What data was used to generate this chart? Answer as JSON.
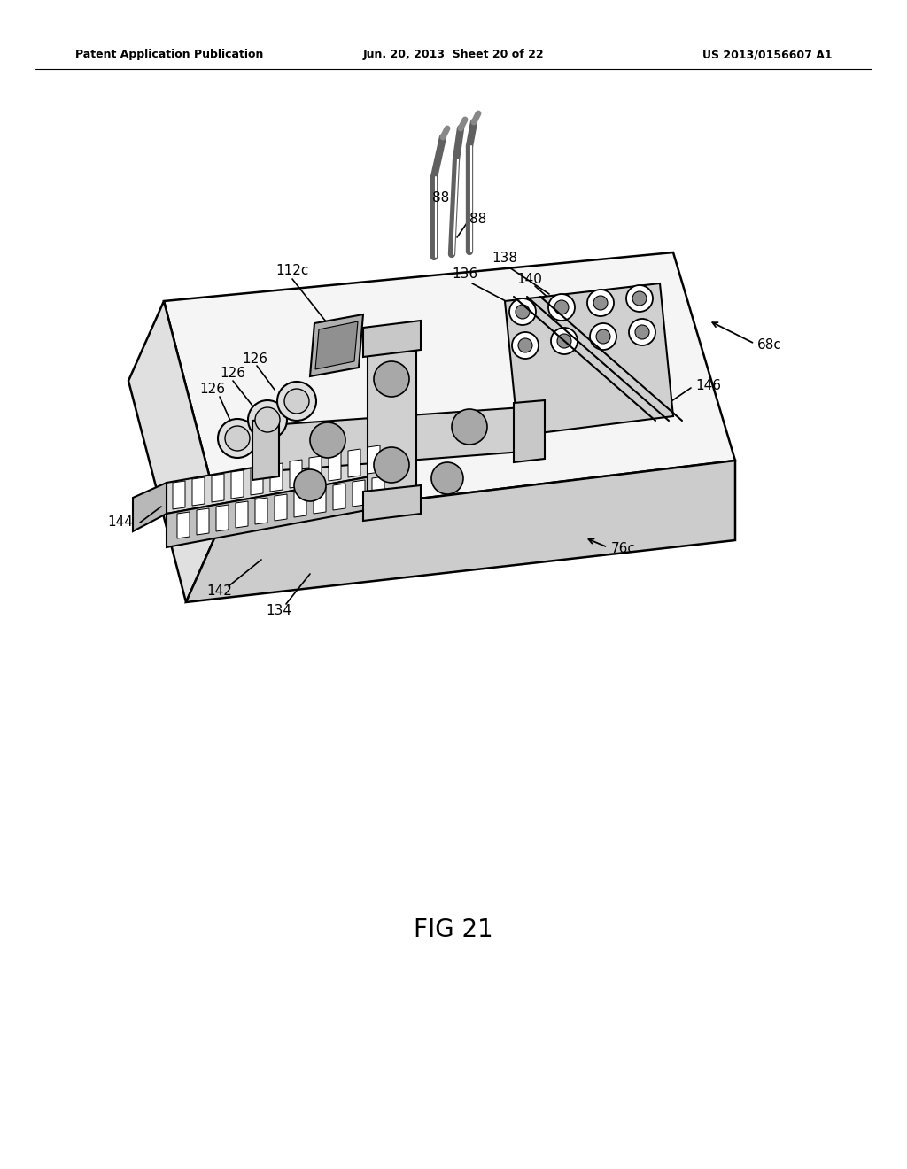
{
  "title_left": "Patent Application Publication",
  "title_center": "Jun. 20, 2013  Sheet 20 of 22",
  "title_right": "US 2013/0156607 A1",
  "fig_label": "FIG 21",
  "background_color": "#ffffff",
  "line_color": "#000000",
  "lw_main": 1.8,
  "lw_thin": 1.0,
  "face_top": "#f5f5f5",
  "face_side": "#e0e0e0",
  "face_front": "#cccccc",
  "face_component": "#d0d0d0",
  "face_dark": "#b8b8b8"
}
